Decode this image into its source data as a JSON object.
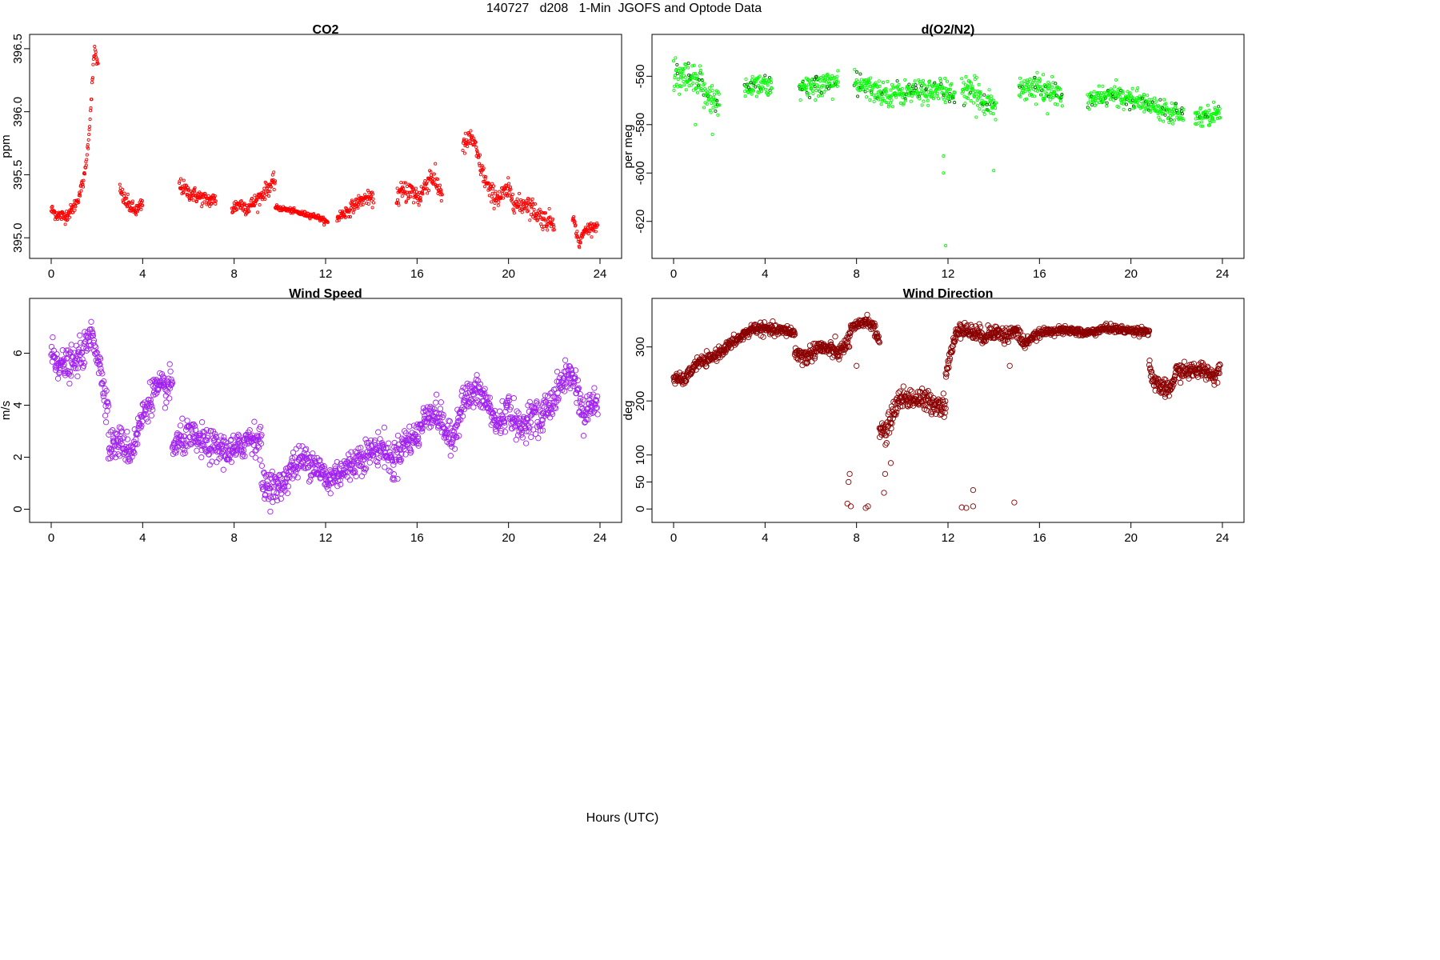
{
  "page": {
    "title": "140727   d208   1-Min  JGOFS and Optode Data",
    "xlabel": "Hours (UTC)"
  },
  "chart_data": [
    {
      "id": "co2",
      "type": "scatter",
      "title": "CO2",
      "xlabel": "",
      "ylabel": "ppm",
      "xlim": [
        0,
        24
      ],
      "ylim": [
        394.9,
        396.55
      ],
      "xticks": [
        0,
        4,
        8,
        12,
        16,
        20,
        24
      ],
      "yticks": [
        395.0,
        395.5,
        396.0,
        396.5
      ],
      "ytick_labels": [
        "395.0",
        "395.5",
        "396.0",
        "396.5"
      ],
      "color": "#ff0000",
      "marker_radius_hint": "small",
      "segments": [
        {
          "x": [
            0.0,
            0.3,
            0.6,
            0.9,
            1.1,
            1.3,
            1.45,
            1.6,
            1.7,
            1.8,
            1.85,
            1.9,
            2.05
          ],
          "y": [
            395.22,
            395.18,
            395.17,
            395.22,
            395.28,
            395.38,
            395.48,
            395.72,
            395.95,
            396.25,
            396.38,
            396.5,
            396.35
          ],
          "spread": 0.05
        },
        {
          "x": [
            3.0,
            3.2,
            3.4,
            3.6,
            3.8,
            4.0
          ],
          "y": [
            395.38,
            395.3,
            395.26,
            395.22,
            395.22,
            395.27
          ],
          "spread": 0.06
        },
        {
          "x": [
            5.6,
            6.0,
            6.4,
            6.8,
            7.2
          ],
          "y": [
            395.42,
            395.36,
            395.33,
            395.3,
            395.3
          ],
          "spread": 0.06
        },
        {
          "x": [
            7.9,
            8.2,
            8.6,
            9.0,
            9.4,
            9.8
          ],
          "y": [
            395.23,
            395.27,
            395.24,
            395.3,
            395.38,
            395.45
          ],
          "spread": 0.06
        },
        {
          "x": [
            9.8,
            10.4,
            11.0,
            11.6,
            12.1
          ],
          "y": [
            395.24,
            395.22,
            395.19,
            395.17,
            395.12
          ],
          "spread": 0.02
        },
        {
          "x": [
            12.5,
            13.0,
            13.4,
            13.8,
            14.1
          ],
          "y": [
            395.16,
            395.22,
            395.28,
            395.32,
            395.3
          ],
          "spread": 0.05
        },
        {
          "x": [
            15.1,
            15.6,
            16.1,
            16.6,
            17.1
          ],
          "y": [
            395.33,
            395.38,
            395.32,
            395.5,
            395.35
          ],
          "spread": 0.09
        },
        {
          "x": [
            18.0,
            18.4,
            18.8,
            19.2,
            19.6,
            20.0,
            20.4,
            20.8,
            21.2,
            21.6,
            22.0
          ],
          "y": [
            395.72,
            395.8,
            395.55,
            395.35,
            395.32,
            395.38,
            395.25,
            395.28,
            395.2,
            395.14,
            395.13
          ],
          "spread": 0.08
        },
        {
          "x": [
            22.8,
            23.0,
            23.1,
            23.3,
            23.5,
            23.9
          ],
          "y": [
            395.18,
            395.02,
            394.95,
            395.05,
            395.08,
            395.1
          ],
          "spread": 0.04
        }
      ]
    },
    {
      "id": "o2n2",
      "type": "scatter",
      "title": "d(O2/N2)",
      "xlabel": "",
      "ylabel": "per meg",
      "xlim": [
        0,
        24
      ],
      "ylim": [
        -632,
        -546
      ],
      "xticks": [
        0,
        4,
        8,
        12,
        16,
        20,
        24
      ],
      "yticks": [
        -560,
        -580,
        -600,
        -620
      ],
      "ytick_labels": [
        "-560",
        "-580",
        "-600",
        "-620"
      ],
      "color": "#00ff00",
      "dark_color": "#006400",
      "segments": [
        {
          "x": [
            0.0,
            0.5,
            1.0,
            1.5,
            2.0
          ],
          "y": [
            -562,
            -561,
            -563,
            -567,
            -573
          ],
          "spread": 7
        },
        {
          "x": [
            3.1,
            3.5,
            4.0,
            4.3
          ],
          "y": [
            -565,
            -563,
            -563,
            -566
          ],
          "spread": 5
        },
        {
          "x": [
            5.5,
            6.0,
            6.6,
            7.2
          ],
          "y": [
            -566,
            -564,
            -563,
            -562
          ],
          "spread": 5
        },
        {
          "x": [
            7.9,
            8.5,
            9.2,
            10.0,
            10.8,
            11.6,
            12.3
          ],
          "y": [
            -563,
            -565,
            -567,
            -567,
            -566,
            -566,
            -567
          ],
          "spread": 5
        },
        {
          "x": [
            12.6,
            13.0,
            13.5,
            14.1
          ],
          "y": [
            -566,
            -567,
            -569,
            -573
          ],
          "spread": 6
        },
        {
          "x": [
            15.1,
            15.7,
            16.3,
            17.0
          ],
          "y": [
            -565,
            -564,
            -566,
            -568
          ],
          "spread": 5
        },
        {
          "x": [
            18.1,
            18.8,
            19.5,
            20.2,
            20.9,
            21.6,
            22.3
          ],
          "y": [
            -571,
            -568,
            -568,
            -570,
            -572,
            -574,
            -575
          ],
          "spread": 4
        },
        {
          "x": [
            22.8,
            23.2,
            23.6,
            23.9
          ],
          "y": [
            -577,
            -576,
            -576,
            -574
          ],
          "spread": 4
        }
      ],
      "outliers": [
        {
          "x": 11.8,
          "y": -593
        },
        {
          "x": 11.8,
          "y": -600
        },
        {
          "x": 11.9,
          "y": -630
        },
        {
          "x": 14.0,
          "y": -599
        },
        {
          "x": 1.7,
          "y": -584
        },
        {
          "x": 0.95,
          "y": -580
        }
      ]
    },
    {
      "id": "windspeed",
      "type": "scatter",
      "title": "Wind Speed",
      "xlabel": "",
      "ylabel": "m/s",
      "xlim": [
        0,
        24
      ],
      "ylim": [
        -0.2,
        7.8
      ],
      "xticks": [
        0,
        4,
        8,
        12,
        16,
        20,
        24
      ],
      "yticks": [
        0,
        2,
        4,
        6
      ],
      "ytick_labels": [
        "0",
        "2",
        "4",
        "6"
      ],
      "color": "#a020f0",
      "segments": [
        {
          "x": [
            0.0,
            0.5,
            1.0,
            1.5,
            1.8,
            2.1,
            2.5
          ],
          "y": [
            6.0,
            5.5,
            5.6,
            6.2,
            6.8,
            5.6,
            3.8
          ],
          "spread": 0.6
        },
        {
          "x": [
            2.5,
            3.0,
            3.5,
            4.0,
            4.5,
            5.0,
            5.3
          ],
          "y": [
            2.4,
            2.6,
            2.2,
            3.6,
            4.6,
            4.6,
            4.8
          ],
          "spread": 0.6
        },
        {
          "x": [
            5.3,
            6.0,
            7.0,
            8.0,
            8.7,
            9.2
          ],
          "y": [
            2.4,
            2.8,
            2.4,
            2.2,
            2.8,
            2.6
          ],
          "spread": 0.6
        },
        {
          "x": [
            9.2,
            10.0,
            10.5,
            11.0,
            11.5,
            12.0
          ],
          "y": [
            1.0,
            0.8,
            1.6,
            1.9,
            1.8,
            1.2
          ],
          "spread": 0.6
        },
        {
          "x": [
            12.0,
            12.5,
            13.0,
            13.5,
            14.0,
            14.5,
            15.0
          ],
          "y": [
            1.0,
            1.4,
            1.6,
            2.0,
            2.2,
            2.4,
            1.6
          ],
          "spread": 0.6
        },
        {
          "x": [
            15.0,
            15.5,
            16.0,
            16.5,
            17.0,
            17.5,
            18.0,
            18.5
          ],
          "y": [
            2.0,
            2.6,
            2.8,
            3.8,
            3.5,
            2.5,
            4.2,
            4.4
          ],
          "spread": 0.6
        },
        {
          "x": [
            18.5,
            19.0,
            19.5,
            20.0,
            20.5,
            21.0,
            21.5
          ],
          "y": [
            4.6,
            4.2,
            3.2,
            3.9,
            3.0,
            3.7,
            3.3
          ],
          "spread": 0.6
        },
        {
          "x": [
            21.5,
            22.0,
            22.5,
            22.9,
            23.3,
            23.6,
            23.9
          ],
          "y": [
            3.8,
            4.2,
            5.2,
            5.0,
            3.5,
            4.0,
            4.2
          ],
          "spread": 0.6
        }
      ]
    },
    {
      "id": "winddir",
      "type": "scatter",
      "title": "Wind Direction",
      "xlabel": "",
      "ylabel": "deg",
      "xlim": [
        0,
        24
      ],
      "ylim": [
        -10,
        375
      ],
      "xticks": [
        0,
        4,
        8,
        12,
        16,
        20,
        24
      ],
      "yticks": [
        0,
        50,
        100,
        200,
        300
      ],
      "ytick_labels": [
        "0",
        "50",
        "100",
        "200",
        "300"
      ],
      "color": "#8b0000",
      "segments": [
        {
          "x": [
            0.0,
            0.5,
            1.0,
            1.5,
            2.0,
            2.5,
            3.0,
            3.5,
            4.0,
            4.5,
            5.0,
            5.3
          ],
          "y": [
            240,
            240,
            270,
            275,
            290,
            305,
            320,
            335,
            333,
            330,
            330,
            325
          ],
          "spread": 10
        },
        {
          "x": [
            5.3,
            5.8,
            6.3,
            6.8,
            7.3,
            7.7
          ],
          "y": [
            290,
            280,
            300,
            295,
            290,
            315
          ],
          "spread": 15
        },
        {
          "x": [
            7.7,
            8.1,
            8.4,
            8.7,
            9.0
          ],
          "y": [
            330,
            340,
            350,
            340,
            310
          ],
          "spread": 10
        },
        {
          "x": [
            9.0,
            9.3,
            9.6,
            9.9,
            10.4,
            11.0,
            11.5,
            11.9
          ],
          "y": [
            150,
            140,
            180,
            205,
            205,
            200,
            195,
            190
          ],
          "spread": 20
        },
        {
          "x": [
            11.9,
            12.2,
            12.5,
            12.8,
            13.2,
            13.6,
            14.0,
            14.5,
            15.0,
            15.4
          ],
          "y": [
            250,
            300,
            340,
            330,
            325,
            320,
            330,
            320,
            330,
            300
          ],
          "spread": 15
        },
        {
          "x": [
            15.4,
            16.0,
            16.5,
            17.0,
            17.5,
            18.0,
            18.5,
            19.0,
            19.5,
            20.0,
            20.5,
            20.8
          ],
          "y": [
            310,
            325,
            330,
            330,
            330,
            325,
            330,
            335,
            332,
            330,
            330,
            328
          ],
          "spread": 7
        },
        {
          "x": [
            20.8,
            21.0,
            21.3,
            21.7,
            22.0,
            22.4,
            22.8,
            23.2,
            23.6,
            23.9
          ],
          "y": [
            270,
            230,
            225,
            220,
            255,
            255,
            255,
            260,
            245,
            260
          ],
          "spread": 15
        }
      ],
      "outliers": [
        {
          "x": 7.6,
          "y": 10
        },
        {
          "x": 7.65,
          "y": 50
        },
        {
          "x": 7.7,
          "y": 65
        },
        {
          "x": 7.75,
          "y": 5
        },
        {
          "x": 8.0,
          "y": 265
        },
        {
          "x": 8.4,
          "y": 2
        },
        {
          "x": 8.5,
          "y": 5
        },
        {
          "x": 9.2,
          "y": 30
        },
        {
          "x": 9.25,
          "y": 65
        },
        {
          "x": 9.5,
          "y": 85
        },
        {
          "x": 12.6,
          "y": 3
        },
        {
          "x": 12.8,
          "y": 2
        },
        {
          "x": 13.1,
          "y": 5
        },
        {
          "x": 13.1,
          "y": 35
        },
        {
          "x": 14.9,
          "y": 12
        },
        {
          "x": 14.7,
          "y": 265
        }
      ]
    }
  ]
}
